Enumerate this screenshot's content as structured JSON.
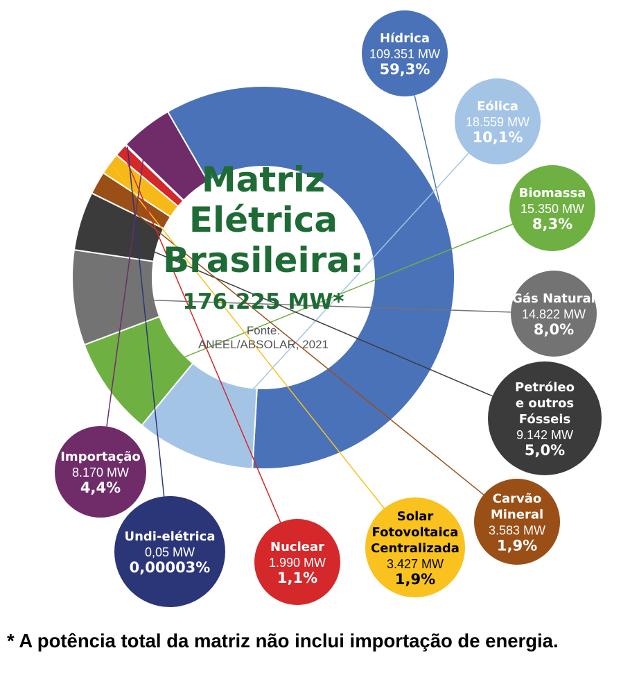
{
  "chart_data": {
    "type": "pie",
    "title_lines": [
      "Matriz",
      "Elétrica",
      "Brasileira:"
    ],
    "total": "176.225 MW*",
    "source_lines": [
      "Fonte:",
      "ANEEL/ABSOLAR, 2021"
    ],
    "slices": [
      {
        "name_lines": [
          "Hídrica"
        ],
        "value_label": "109.351 MW",
        "pct_label": "59,3%",
        "value": 109351,
        "color": "#4a72b8",
        "bubble_color": "#4a72b8"
      },
      {
        "name_lines": [
          "Eólica"
        ],
        "value_label": "18.559 MW",
        "pct_label": "10,1%",
        "value": 18559,
        "color": "#a4c4e6",
        "bubble_color": "#a4c4e6"
      },
      {
        "name_lines": [
          "Biomassa"
        ],
        "value_label": "15.350 MW",
        "pct_label": "8,3%",
        "value": 15350,
        "color": "#6fb043",
        "bubble_color": "#6fb043"
      },
      {
        "name_lines": [
          "Gás Natural"
        ],
        "value_label": "14.822 MW",
        "pct_label": "8,0%",
        "value": 14822,
        "color": "#737373",
        "bubble_color": "#737373"
      },
      {
        "name_lines": [
          "Petróleo",
          "e outros",
          "Fósseis"
        ],
        "value_label": "9.142 MW",
        "pct_label": "5,0%",
        "value": 9142,
        "color": "#3b3b3b",
        "bubble_color": "#3b3b3b"
      },
      {
        "name_lines": [
          "Carvão",
          "Mineral"
        ],
        "value_label": "3.583  MW",
        "pct_label": "1,9%",
        "value": 3583,
        "color": "#9a4f17",
        "bubble_color": "#9a4f17"
      },
      {
        "name_lines": [
          "Solar",
          "Fotovoltaica",
          "Centralizada"
        ],
        "value_label": "3.427 MW",
        "pct_label": "1,9%",
        "value": 3427,
        "color": "#f7b918",
        "bubble_color": "#f9c21e"
      },
      {
        "name_lines": [
          "Nuclear"
        ],
        "value_label": "1.990 MW",
        "pct_label": "1,1%",
        "value": 1990,
        "color": "#d4282b",
        "bubble_color": "#d4282b"
      },
      {
        "name_lines": [
          "Undi-elétrica"
        ],
        "value_label": "0,05 MW",
        "pct_label": "0,00003%",
        "value": 0.05,
        "color": "#2b3679",
        "bubble_color": "#2b3679"
      },
      {
        "name_lines": [
          "Importação"
        ],
        "value_label": "8.170 MW",
        "pct_label": "4,4%",
        "value": 8170,
        "color": "#6f2c69",
        "bubble_color": "#6f2c69"
      }
    ],
    "footnote": "* A potência total da matriz não inclui importação de energia."
  }
}
